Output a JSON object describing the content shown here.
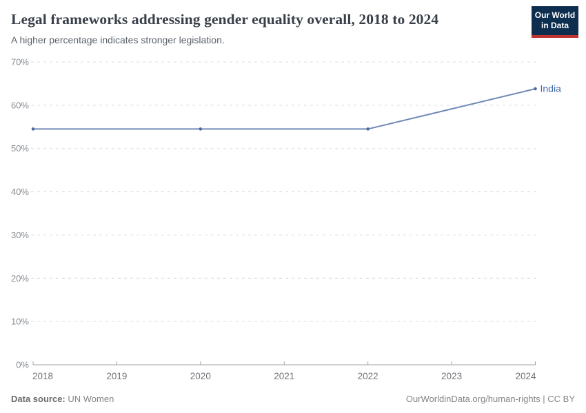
{
  "header": {
    "title": "Legal frameworks addressing gender equality overall, 2018 to 2024",
    "subtitle": "A higher percentage indicates stronger legislation.",
    "logo": {
      "line1": "Our World",
      "line2": "in Data"
    }
  },
  "colors": {
    "logo_bg": "#0d2e4e",
    "logo_red": "#bf3430",
    "line_blue": "#7089b6",
    "marker_blue": "#4d6ba3",
    "entity_label_blue": "#4066a3",
    "grid_gray": "#dcdcdc",
    "axis_gray": "#a3a3a3"
  },
  "chart_data": {
    "type": "line",
    "title": "Legal frameworks addressing gender equality overall, 2018 to 2024",
    "subtitle": "A higher percentage indicates stronger legislation.",
    "unit": "%",
    "x": [
      2018,
      2020,
      2022,
      2024
    ],
    "series": [
      {
        "name": "India",
        "values": [
          54.5,
          54.5,
          54.5,
          63.8
        ],
        "color": "#7089b6",
        "marker_color": "#4d6ba3",
        "label_color": "#4066a3"
      }
    ],
    "x_ticks": [
      2018,
      2019,
      2020,
      2021,
      2022,
      2023,
      2024
    ],
    "y_ticks": [
      {
        "value": 0,
        "label": "0%"
      },
      {
        "value": 10,
        "label": "10%"
      },
      {
        "value": 20,
        "label": "20%"
      },
      {
        "value": 30,
        "label": "30%"
      },
      {
        "value": 40,
        "label": "40%"
      },
      {
        "value": 50,
        "label": "50%"
      },
      {
        "value": 60,
        "label": "60%"
      },
      {
        "value": 70,
        "label": "70%"
      }
    ],
    "xlim": [
      2018,
      2024
    ],
    "ylim": [
      0,
      70
    ],
    "grid": "horizontal-dashed",
    "legend": "end-of-line-label"
  },
  "footer": {
    "source_label": "Data source:",
    "source_value": " UN Women",
    "right_text": "OurWorldinData.org/human-rights | CC BY"
  }
}
